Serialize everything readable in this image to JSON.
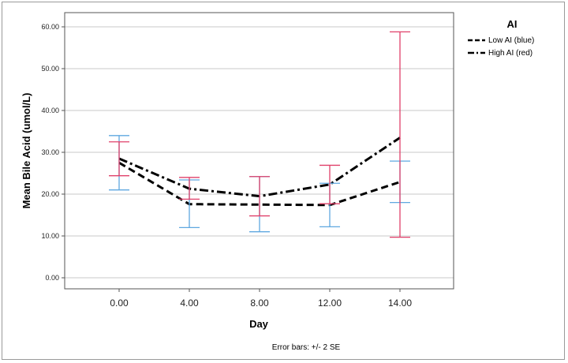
{
  "chart_data": {
    "type": "line",
    "xlabel": "Day",
    "ylabel": "Mean Bile Acid (umol/L)",
    "footnote": "Error bars: +/- 2 SE",
    "x": [
      0,
      4,
      8,
      12,
      14
    ],
    "x_tick_labels": [
      "0.00",
      "4.00",
      "8.00",
      "12.00",
      "14.00"
    ],
    "y_tick_values": [
      0,
      10,
      20,
      30,
      40,
      50,
      60
    ],
    "y_tick_labels": [
      "0.00",
      "10.00",
      "20.00",
      "30.00",
      "40.00",
      "50.00",
      "60.00"
    ],
    "ylim": [
      -3,
      63
    ],
    "grid": "horizontal",
    "legend": {
      "title": "AI",
      "position": "right"
    },
    "series": [
      {
        "name": "Low AI (blue)",
        "line_style": "dashed",
        "error_color": "#5fa8e0",
        "values": [
          27.5,
          17.6,
          17.5,
          17.4,
          22.9
        ],
        "err_low": [
          21.0,
          12.0,
          11.0,
          12.2,
          18.0
        ],
        "err_high": [
          34.0,
          23.4,
          24.2,
          22.6,
          27.9
        ]
      },
      {
        "name": "High AI (red)",
        "line_style": "dash-dot",
        "error_color": "#e0406a",
        "values": [
          28.5,
          21.3,
          19.5,
          22.3,
          33.5
        ],
        "err_low": [
          24.4,
          18.8,
          14.8,
          17.7,
          9.7
        ],
        "err_high": [
          32.5,
          24.0,
          24.2,
          26.9,
          58.8
        ]
      }
    ]
  }
}
